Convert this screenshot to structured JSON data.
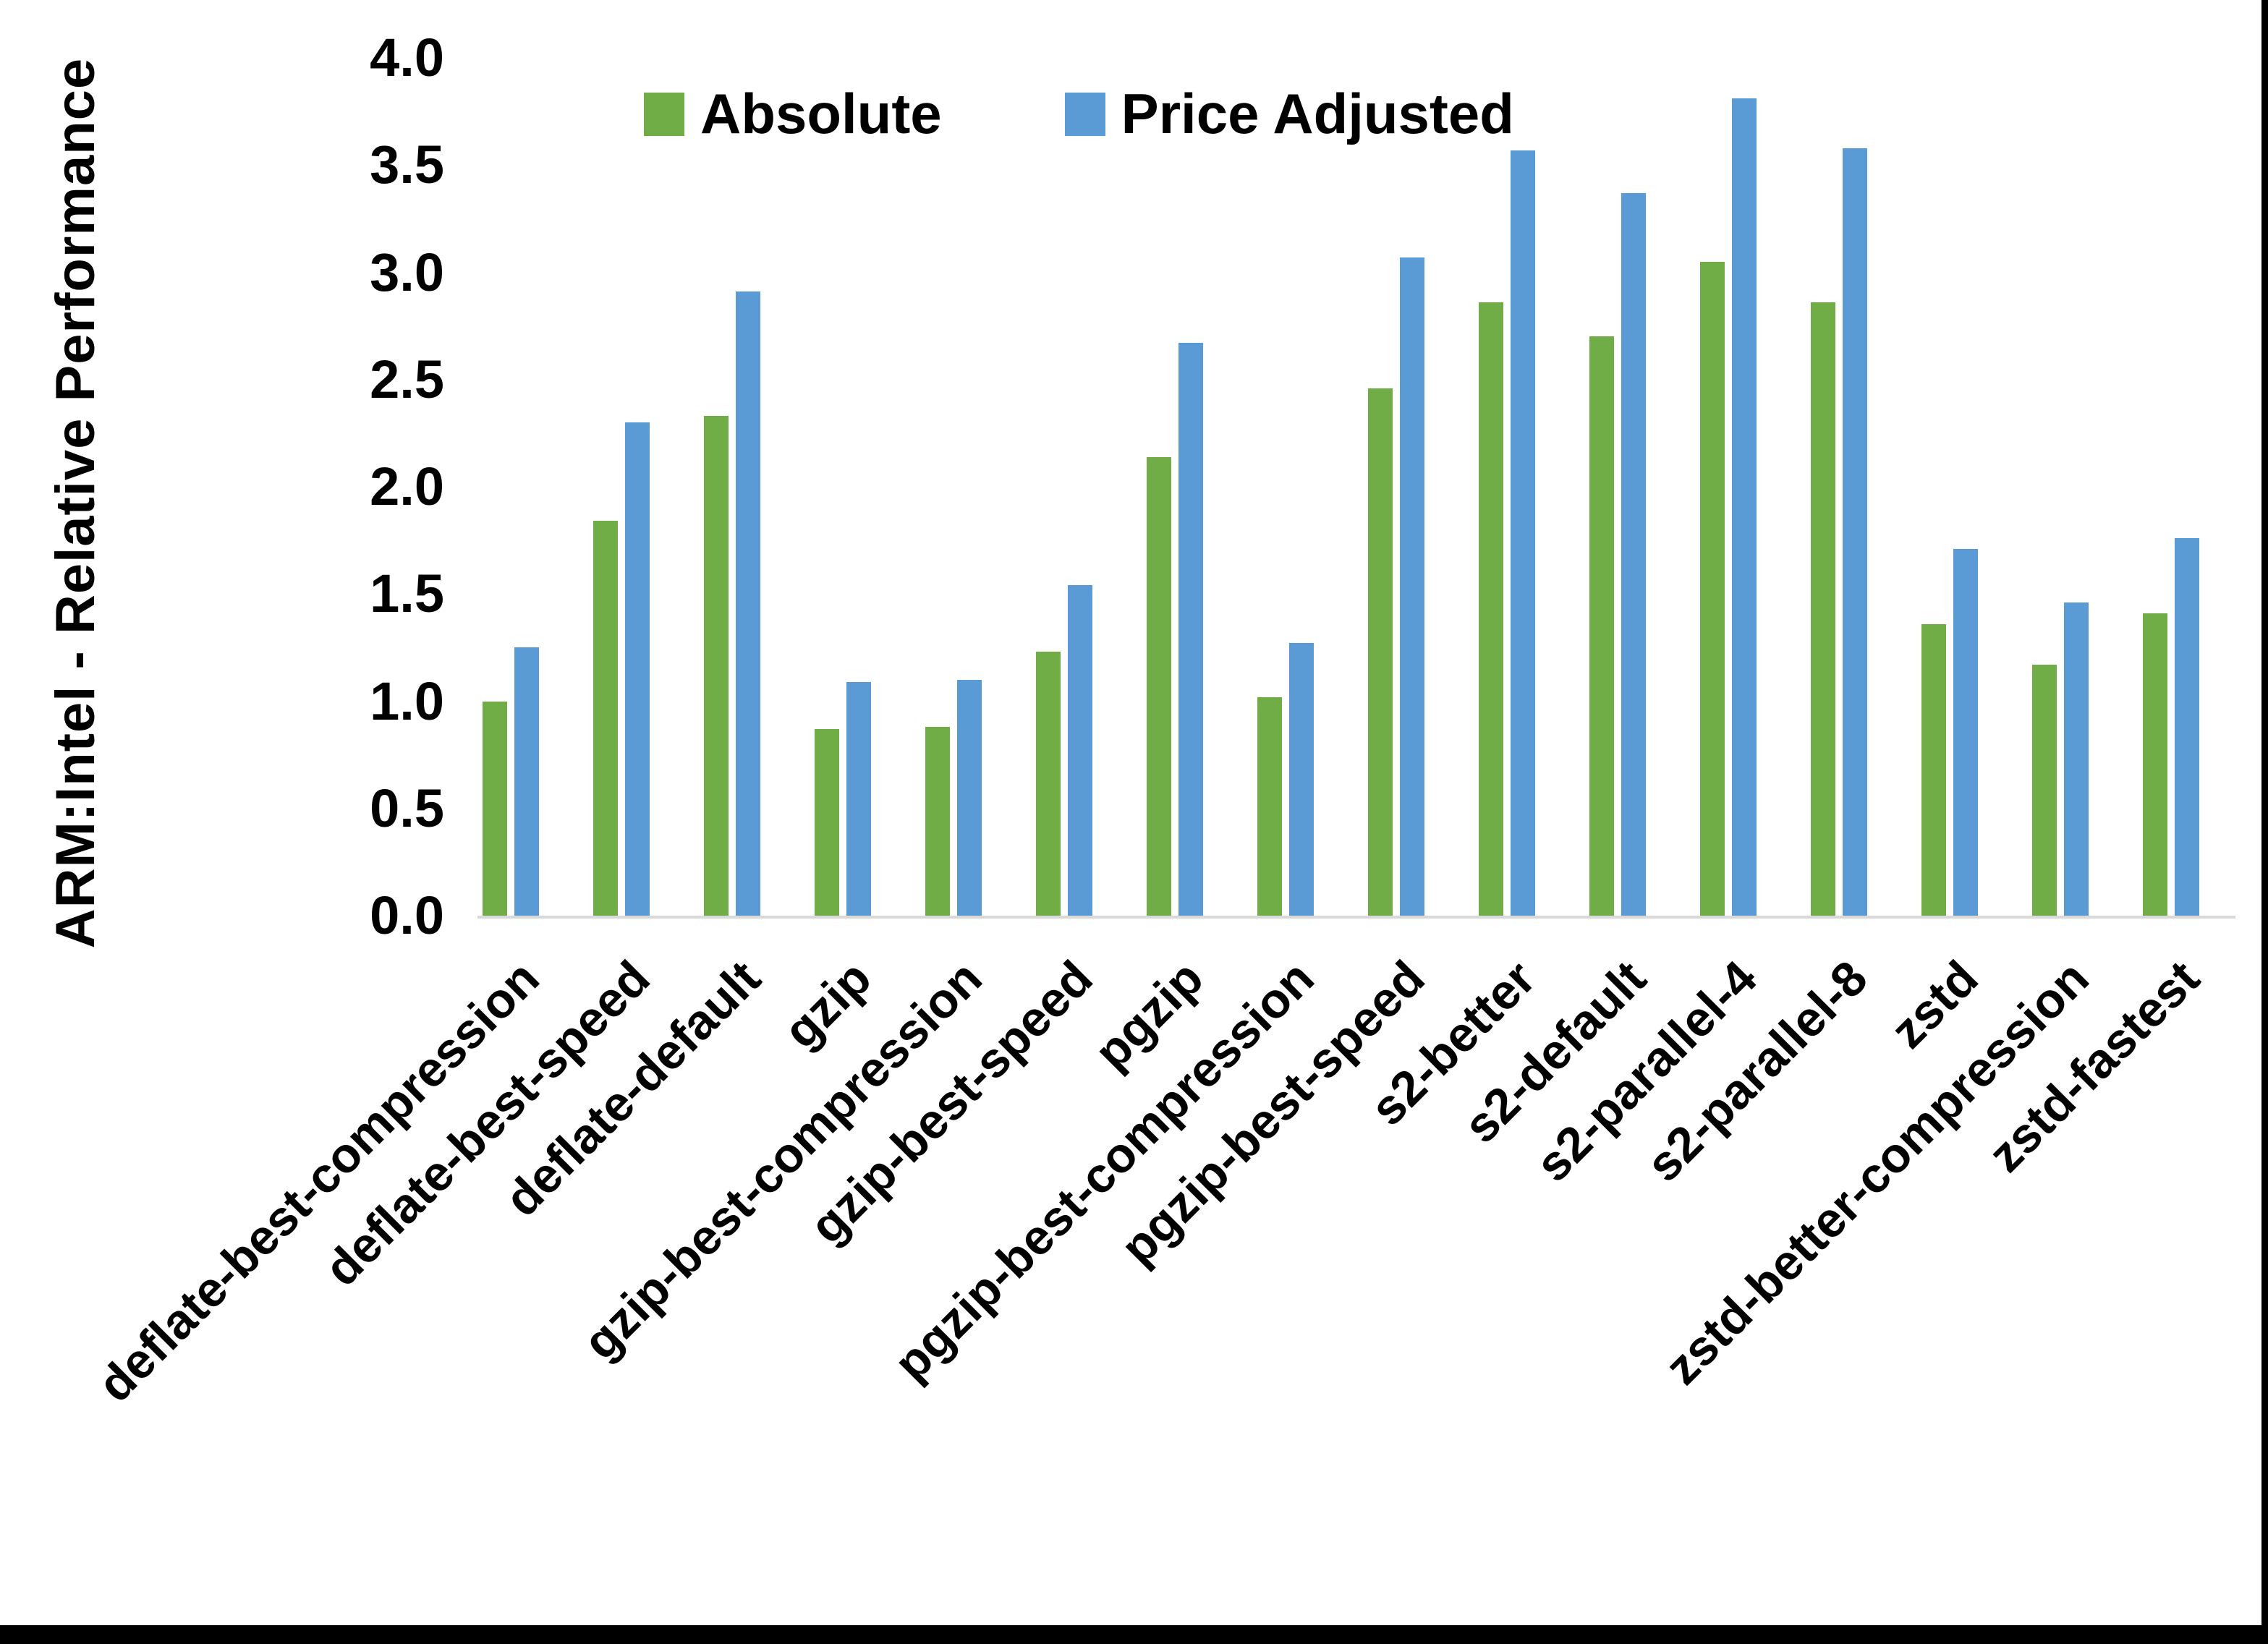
{
  "chart_data": {
    "type": "bar",
    "title": "",
    "xlabel": "",
    "ylabel": "ARM:Intel - Relative Performance",
    "ylim": [
      0.0,
      4.0
    ],
    "grid": false,
    "legend_position": "top-center-inside",
    "yticks": [
      {
        "value": 4.0,
        "label": "4.0"
      },
      {
        "value": 3.5,
        "label": "3.5"
      },
      {
        "value": 3.0,
        "label": "3.0"
      },
      {
        "value": 2.5,
        "label": "2.5"
      },
      {
        "value": 2.0,
        "label": "2.0"
      },
      {
        "value": 1.5,
        "label": "1.5"
      },
      {
        "value": 1.0,
        "label": "1.0"
      },
      {
        "value": 0.5,
        "label": "0.5"
      },
      {
        "value": 0.0,
        "label": "0.0"
      }
    ],
    "categories": [
      "deflate-best-compression",
      "deflate-best-speed",
      "deflate-default",
      "gzip",
      "gzip-best-compression",
      "gzip-best-speed",
      "pgzip",
      "pgzip-best-compression",
      "pgzip-best-speed",
      "s2-better",
      "s2-default",
      "s2-parallel-4",
      "s2-parallel-8",
      "zstd",
      "zstd-better-compression",
      "zstd-fastest"
    ],
    "series": [
      {
        "name": "Absolute",
        "color": "#70AD47",
        "values": [
          1.0,
          1.84,
          2.33,
          0.87,
          0.88,
          1.23,
          2.14,
          1.02,
          2.46,
          2.86,
          2.7,
          3.05,
          2.86,
          1.36,
          1.17,
          1.41
        ]
      },
      {
        "name": "Price Adjusted",
        "color": "#5B9BD5",
        "values": [
          1.25,
          2.3,
          2.91,
          1.09,
          1.1,
          1.54,
          2.67,
          1.27,
          3.07,
          3.57,
          3.37,
          3.81,
          3.58,
          1.71,
          1.46,
          1.76
        ]
      }
    ]
  },
  "colors": {
    "axis_line": "#D9D9D9",
    "text": "#000000",
    "background": "#FFFFFF",
    "border": "#000000"
  }
}
